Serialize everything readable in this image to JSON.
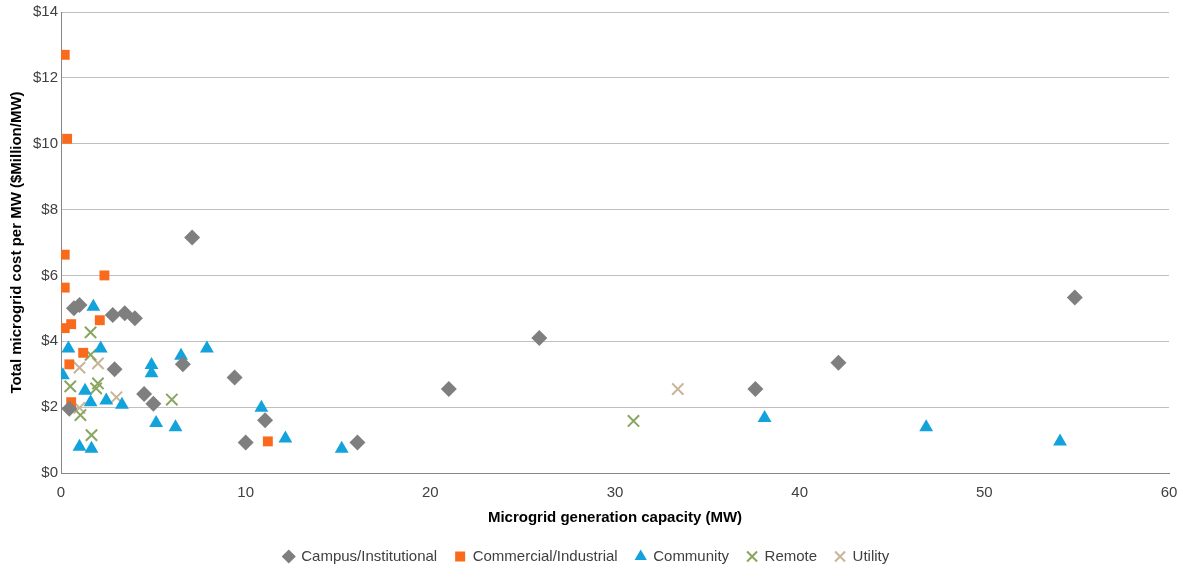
{
  "chart_data": {
    "type": "scatter",
    "xlabel": "Microgrid generation capacity (MW)",
    "ylabel": "Total microgrid cost per MW ($Million/MW)",
    "xlim": [
      0,
      60
    ],
    "xticks": [
      0,
      10,
      20,
      30,
      40,
      50,
      60
    ],
    "ylim": [
      0,
      14
    ],
    "yticks": [
      {
        "value": 0,
        "label": "$0"
      },
      {
        "value": 2,
        "label": "$2"
      },
      {
        "value": 4,
        "label": "$4"
      },
      {
        "value": 6,
        "label": "$6"
      },
      {
        "value": 8,
        "label": "$8"
      },
      {
        "value": 10,
        "label": "$10"
      },
      {
        "value": 12,
        "label": "$12"
      },
      {
        "value": 14,
        "label": "$14"
      }
    ],
    "grid": "y",
    "legend": "bottom",
    "series": [
      {
        "name": "Campus/Institutional",
        "color": "#7f7f7f",
        "marker": "diamond",
        "x": [
          0.45,
          0.7,
          1.0,
          2.8,
          3.45,
          4.0,
          2.9,
          4.5,
          5.0,
          6.6,
          7.1,
          9.4,
          11.05,
          10.0,
          16.05,
          21.0,
          25.9,
          37.6,
          42.1,
          54.9
        ],
        "values": [
          1.95,
          5.0,
          5.1,
          4.8,
          4.85,
          4.7,
          3.15,
          2.4,
          2.1,
          3.3,
          7.15,
          2.9,
          1.6,
          0.93,
          0.93,
          2.55,
          4.1,
          2.55,
          3.35,
          5.33
        ]
      },
      {
        "name": "Commercial/Industrial",
        "color": "#fa6a1c",
        "marker": "square",
        "x": [
          0.2,
          0.33,
          0.2,
          2.35,
          0.2,
          0.55,
          0.2,
          2.1,
          1.2,
          0.45,
          0.55,
          11.2
        ],
        "values": [
          12.7,
          10.15,
          6.63,
          6.0,
          5.63,
          4.52,
          4.4,
          4.64,
          3.65,
          3.3,
          2.15,
          0.96
        ]
      },
      {
        "name": "Community",
        "color": "#12a2dc",
        "marker": "triangle",
        "x": [
          1.75,
          0.4,
          2.15,
          0.1,
          1.3,
          1.6,
          2.45,
          3.3,
          4.9,
          4.9,
          6.5,
          7.9,
          5.15,
          6.2,
          1.0,
          1.65,
          10.85,
          12.15,
          15.2,
          38.1,
          46.85,
          54.1
        ],
        "values": [
          5.05,
          3.78,
          3.78,
          2.97,
          2.5,
          2.15,
          2.2,
          2.07,
          3.28,
          3.03,
          3.56,
          3.78,
          1.52,
          1.39,
          0.8,
          0.74,
          1.98,
          1.05,
          0.74,
          1.67,
          1.39,
          0.96
        ]
      },
      {
        "name": "Remote",
        "color": "#8aa560",
        "marker": "cross",
        "x": [
          1.6,
          1.6,
          0.5,
          2.0,
          1.9,
          1.05,
          1.65,
          6.0,
          31.0
        ],
        "values": [
          4.27,
          3.59,
          2.63,
          2.72,
          2.57,
          1.76,
          1.15,
          2.23,
          1.58
        ]
      },
      {
        "name": "Utility",
        "color": "#c8b496",
        "marker": "cross",
        "x": [
          1.0,
          2.0,
          3.0,
          1.0,
          33.4
        ],
        "values": [
          3.2,
          3.33,
          2.3,
          1.98,
          2.55
        ]
      }
    ]
  }
}
